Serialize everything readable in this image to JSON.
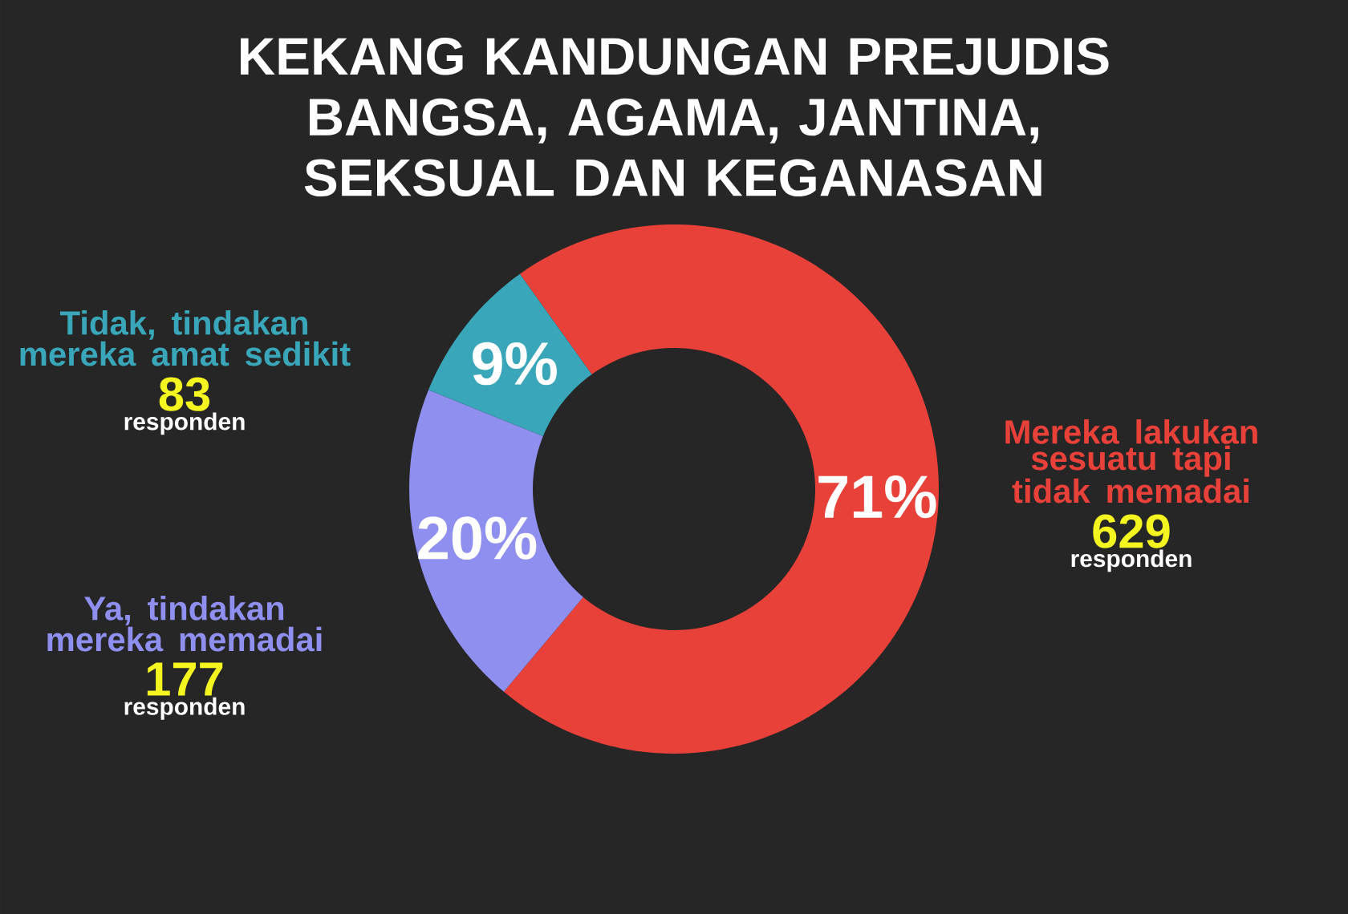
{
  "chart_data": {
    "type": "donut",
    "title": "KEKANG KANDUNGAN PREJUDIS BANGSA, AGAMA, JANTINA, SEKSUAL DAN KEGANASAN",
    "categories": [
      "Mereka lakukan sesuatu tapi tidak memadai",
      "Ya, tindakan mereka memadai",
      "Tidak, tindakan mereka amat sedikit"
    ],
    "values": [
      71,
      20,
      9
    ],
    "value_labels": [
      "71%",
      "20%",
      "9%"
    ],
    "colors": [
      "#e8413a",
      "#8f8ff0",
      "#3aa6b9"
    ],
    "annotations": [
      "629",
      "responden",
      "177",
      "responden",
      "83",
      "responden"
    ]
  }
}
